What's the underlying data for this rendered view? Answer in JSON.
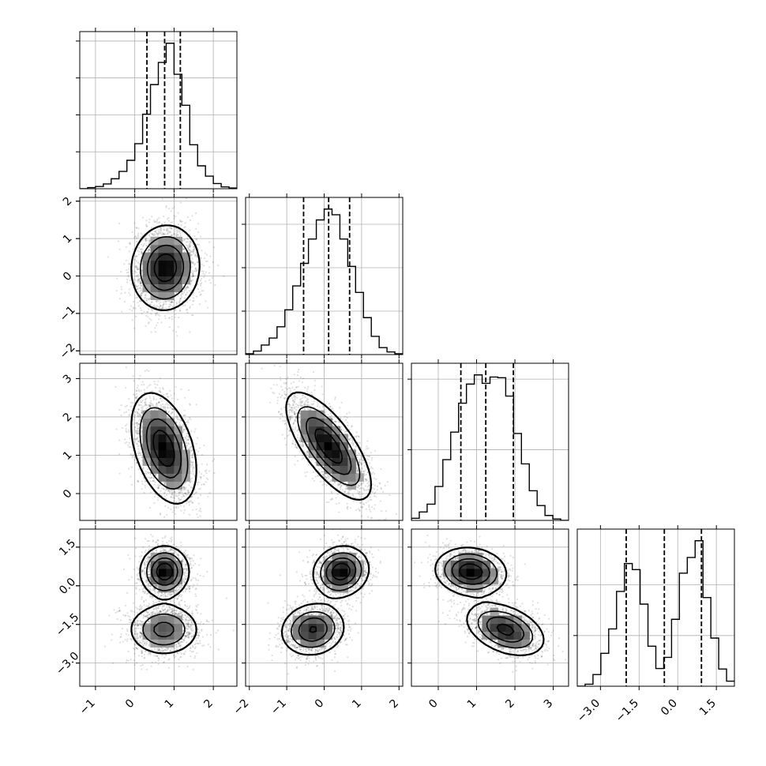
{
  "chart_data": {
    "type": "corner",
    "grid": true,
    "params": [
      {
        "range": [
          -1.4,
          2.6
        ],
        "ticks": [
          {
            "v": -1,
            "label": "−1"
          },
          {
            "v": 0,
            "label": "0"
          },
          {
            "v": 1,
            "label": "1"
          },
          {
            "v": 2,
            "label": "2"
          }
        ],
        "quantiles": [
          0.31,
          0.76,
          1.16
        ]
      },
      {
        "range": [
          -2.1,
          2.1
        ],
        "ticks": [
          {
            "v": -2,
            "label": "−2"
          },
          {
            "v": -1,
            "label": "−1"
          },
          {
            "v": 0,
            "label": "0"
          },
          {
            "v": 1,
            "label": "1"
          },
          {
            "v": 2,
            "label": "2"
          }
        ],
        "quantiles": [
          -0.55,
          0.12,
          0.68
        ]
      },
      {
        "range": [
          -0.7,
          3.4
        ],
        "ticks": [
          {
            "v": 0,
            "label": "0"
          },
          {
            "v": 1,
            "label": "1"
          },
          {
            "v": 2,
            "label": "2"
          },
          {
            "v": 3,
            "label": "3"
          }
        ],
        "quantiles": [
          0.59,
          1.24,
          1.96
        ]
      },
      {
        "range": [
          -3.9,
          2.2
        ],
        "ticks": [
          {
            "v": -3.0,
            "label": "−3.0"
          },
          {
            "v": -1.5,
            "label": "−1.5"
          },
          {
            "v": 0.0,
            "label": "0.0"
          },
          {
            "v": 1.5,
            "label": "1.5"
          }
        ],
        "quantiles": [
          -2.0,
          -0.52,
          0.92
        ]
      }
    ],
    "histograms": [
      {
        "edges": [
          -1.4,
          -1.2,
          -1.0,
          -0.8,
          -0.6,
          -0.4,
          -0.2,
          0.0,
          0.2,
          0.4,
          0.6,
          0.8,
          1.0,
          1.2,
          1.4,
          1.6,
          1.8,
          2.0,
          2.2,
          2.4,
          2.6
        ],
        "counts": [
          0,
          30,
          60,
          130,
          270,
          470,
          770,
          1220,
          2020,
          2820,
          3420,
          3940,
          3100,
          2260,
          1190,
          620,
          340,
          140,
          50,
          20
        ],
        "grid_y": [
          1000,
          2000,
          3000,
          4000
        ]
      },
      {
        "edges": [
          -2.1,
          -1.89,
          -1.68,
          -1.47,
          -1.26,
          -1.05,
          -0.84,
          -0.63,
          -0.42,
          -0.21,
          0.0,
          0.21,
          0.42,
          0.63,
          0.84,
          1.05,
          1.26,
          1.47,
          1.68,
          1.89,
          2.1
        ],
        "counts": [
          20,
          80,
          220,
          380,
          640,
          1030,
          1580,
          2100,
          2660,
          3100,
          3350,
          3220,
          2660,
          2030,
          1430,
          850,
          420,
          160,
          60,
          20
        ],
        "grid_y": [
          1000,
          2000,
          3000
        ]
      },
      {
        "edges": [
          -0.7,
          -0.495,
          -0.29,
          -0.085,
          0.12,
          0.325,
          0.53,
          0.735,
          0.94,
          1.145,
          1.35,
          1.555,
          1.76,
          1.965,
          2.17,
          2.375,
          2.58,
          2.785,
          2.99,
          3.195,
          3.4
        ],
        "counts": [
          30,
          120,
          230,
          480,
          860,
          1250,
          1660,
          1930,
          2060,
          1940,
          2030,
          2020,
          1760,
          1230,
          800,
          420,
          210,
          70,
          20,
          0
        ],
        "grid_y": [
          1000,
          2000
        ]
      },
      {
        "edges": [
          -3.9,
          -3.595,
          -3.29,
          -2.985,
          -2.68,
          -2.375,
          -2.07,
          -1.765,
          -1.46,
          -1.155,
          -0.85,
          -0.545,
          -0.24,
          0.065,
          0.37,
          0.675,
          0.98,
          1.285,
          1.59,
          1.895,
          2.2
        ],
        "counts": [
          0,
          40,
          230,
          650,
          1130,
          1870,
          2420,
          2300,
          1620,
          790,
          350,
          570,
          1320,
          2230,
          2540,
          2870,
          1750,
          950,
          340,
          100
        ],
        "grid_y": [
          1000,
          2000
        ]
      }
    ],
    "pairs": [
      {
        "row": 1,
        "col": 0,
        "blobs": [
          {
            "cx": 0.78,
            "cy": 0.22,
            "sx": 0.42,
            "sy": 0.55,
            "rho": 0.05,
            "w": 1
          }
        ]
      },
      {
        "row": 2,
        "col": 0,
        "blobs": [
          {
            "cx": 0.74,
            "cy": 1.18,
            "sx": 0.4,
            "sy": 0.7,
            "rho": -0.4,
            "w": 1
          }
        ]
      },
      {
        "row": 2,
        "col": 1,
        "blobs": [
          {
            "cx": 0.12,
            "cy": 1.24,
            "sx": 0.55,
            "sy": 0.68,
            "rho": -0.72,
            "w": 1
          }
        ]
      },
      {
        "row": 3,
        "col": 0,
        "blobs": [
          {
            "cx": 0.76,
            "cy": 0.55,
            "sx": 0.3,
            "sy": 0.48,
            "rho": 0.0,
            "w": 0.5
          },
          {
            "cx": 0.74,
            "cy": -1.7,
            "sx": 0.45,
            "sy": 0.5,
            "rho": 0.0,
            "w": 0.5
          }
        ]
      },
      {
        "row": 3,
        "col": 1,
        "blobs": [
          {
            "cx": 0.45,
            "cy": 0.55,
            "sx": 0.36,
            "sy": 0.48,
            "rho": 0.1,
            "w": 0.5
          },
          {
            "cx": -0.3,
            "cy": -1.7,
            "sx": 0.42,
            "sy": 0.5,
            "rho": 0.1,
            "w": 0.5
          }
        ]
      },
      {
        "row": 3,
        "col": 2,
        "blobs": [
          {
            "cx": 0.85,
            "cy": 0.55,
            "sx": 0.45,
            "sy": 0.45,
            "rho": -0.1,
            "w": 0.5
          },
          {
            "cx": 1.75,
            "cy": -1.7,
            "sx": 0.5,
            "sy": 0.5,
            "rho": -0.4,
            "w": 0.5
          }
        ]
      }
    ]
  }
}
